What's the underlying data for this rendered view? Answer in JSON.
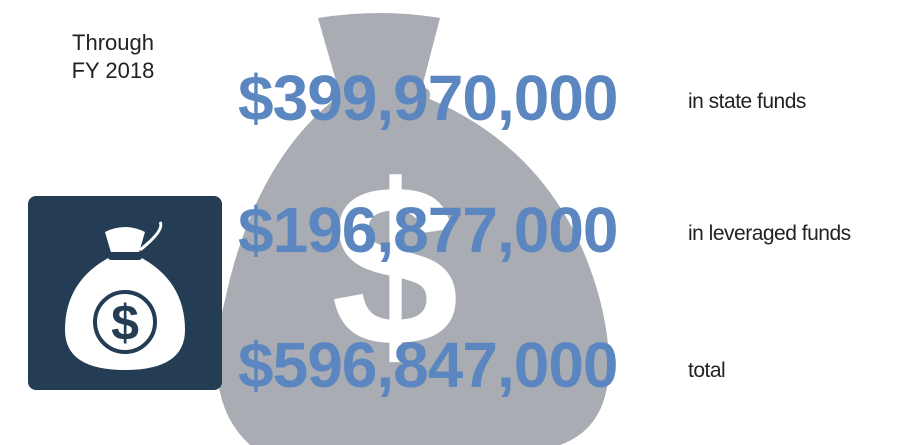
{
  "heading": [
    "Through",
    "FY 2018"
  ],
  "figures": [
    {
      "amount": "$399,970,000",
      "label": "in state funds"
    },
    {
      "amount": "$196,877,000",
      "label": "in leveraged funds"
    },
    {
      "amount": "$596,847,000",
      "label": "total"
    }
  ]
}
